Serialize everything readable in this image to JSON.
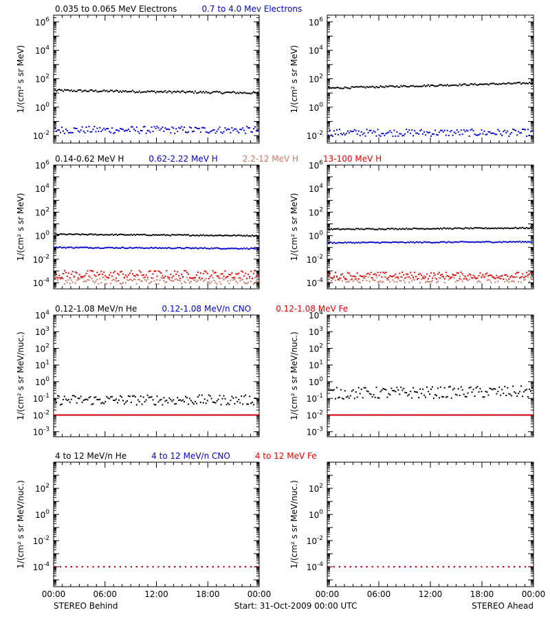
{
  "chart_data": [
    {
      "type": "scatter",
      "panel": "electrons-behind",
      "scale": "log",
      "ylim": [
        0.003,
        3000000
      ],
      "yticks": [
        {
          "value": 0.01,
          "base": "10",
          "exp": "-2"
        },
        {
          "value": 1,
          "base": "10",
          "exp": "0"
        },
        {
          "value": 100,
          "base": "10",
          "exp": "2"
        },
        {
          "value": 10000,
          "base": "10",
          "exp": "4"
        },
        {
          "value": 1000000,
          "base": "10",
          "exp": "6"
        }
      ],
      "ylabel": "1/(cm² s sr MeV)",
      "series": [
        {
          "name": "0.035 to 0.065 MeV Electrons",
          "color": "#000000",
          "y_start": 15,
          "y_end": 10,
          "jitter": 0.08
        },
        {
          "name": "0.7 to 4.0 Mev Electrons",
          "color": "#0000cc",
          "y_start": 0.025,
          "y_end": 0.025,
          "jitter": 0.25
        }
      ]
    },
    {
      "type": "scatter",
      "panel": "electrons-ahead",
      "scale": "log",
      "ylim": [
        0.003,
        3000000
      ],
      "yticks": [
        {
          "value": 0.01,
          "base": "10",
          "exp": "-2"
        },
        {
          "value": 1,
          "base": "10",
          "exp": "0"
        },
        {
          "value": 100,
          "base": "10",
          "exp": "2"
        },
        {
          "value": 10000,
          "base": "10",
          "exp": "4"
        },
        {
          "value": 1000000,
          "base": "10",
          "exp": "6"
        }
      ],
      "ylabel": "1/(cm² s sr MeV)",
      "series": [
        {
          "name": "0.035 to 0.065 MeV Electrons",
          "color": "#000000",
          "y_start": 22,
          "y_end": 50,
          "jitter": 0.06
        },
        {
          "name": "0.7 to 4.0 Mev Electrons",
          "color": "#0000cc",
          "y_start": 0.016,
          "y_end": 0.016,
          "jitter": 0.25
        }
      ]
    },
    {
      "type": "scatter",
      "panel": "protons-behind",
      "scale": "log",
      "ylim": [
        3e-05,
        1000000
      ],
      "yticks": [
        {
          "value": 0.0001,
          "base": "10",
          "exp": "-4"
        },
        {
          "value": 0.01,
          "base": "10",
          "exp": "-2"
        },
        {
          "value": 1,
          "base": "10",
          "exp": "0"
        },
        {
          "value": 100,
          "base": "10",
          "exp": "2"
        },
        {
          "value": 10000,
          "base": "10",
          "exp": "4"
        },
        {
          "value": 1000000,
          "base": "10",
          "exp": "6"
        }
      ],
      "ylabel": "1/(cm² s sr MeV)",
      "series": [
        {
          "name": "0.14-0.62 MeV H",
          "color": "#000000",
          "y_start": 1.3,
          "y_end": 1.0,
          "jitter": 0.05
        },
        {
          "name": "0.62-2.22 MeV H",
          "color": "#0000cc",
          "y_start": 0.1,
          "y_end": 0.08,
          "jitter": 0.05
        },
        {
          "name": "2.2-12 MeV H",
          "color": "#c87864",
          "y_start": 0.00015,
          "y_end": 0.00015,
          "jitter": 0.3
        },
        {
          "name": "13-100 MeV H",
          "color": "#dd0000",
          "y_start": 0.0005,
          "y_end": 0.0005,
          "jitter": 0.35
        }
      ]
    },
    {
      "type": "scatter",
      "panel": "protons-ahead",
      "scale": "log",
      "ylim": [
        3e-05,
        1000000
      ],
      "yticks": [
        {
          "value": 0.0001,
          "base": "10",
          "exp": "-4"
        },
        {
          "value": 0.01,
          "base": "10",
          "exp": "-2"
        },
        {
          "value": 1,
          "base": "10",
          "exp": "0"
        },
        {
          "value": 100,
          "base": "10",
          "exp": "2"
        },
        {
          "value": 10000,
          "base": "10",
          "exp": "4"
        },
        {
          "value": 1000000,
          "base": "10",
          "exp": "6"
        }
      ],
      "ylabel": "1/(cm² s sr MeV)",
      "series": [
        {
          "name": "0.14-0.62 MeV H",
          "color": "#000000",
          "y_start": 3.5,
          "y_end": 4.5,
          "jitter": 0.05
        },
        {
          "name": "0.62-2.22 MeV H",
          "color": "#0000cc",
          "y_start": 0.25,
          "y_end": 0.3,
          "jitter": 0.05
        },
        {
          "name": "2.2-12 MeV H",
          "color": "#c87864",
          "y_start": 0.0002,
          "y_end": 0.0002,
          "jitter": 0.3
        },
        {
          "name": "13-100 MeV H",
          "color": "#dd0000",
          "y_start": 0.0004,
          "y_end": 0.0004,
          "jitter": 0.3
        }
      ]
    },
    {
      "type": "scatter",
      "panel": "heavy-ions-low-behind",
      "scale": "log",
      "ylim": [
        0.0005,
        10000
      ],
      "yticks": [
        {
          "value": 0.001,
          "base": "10",
          "exp": "-3"
        },
        {
          "value": 0.01,
          "base": "10",
          "exp": "-2"
        },
        {
          "value": 0.1,
          "base": "10",
          "exp": "-1"
        },
        {
          "value": 1,
          "base": "10",
          "exp": "0"
        },
        {
          "value": 10,
          "base": "10",
          "exp": "1"
        },
        {
          "value": 100,
          "base": "10",
          "exp": "2"
        },
        {
          "value": 1000,
          "base": "10",
          "exp": "3"
        },
        {
          "value": 10000,
          "base": "10",
          "exp": "4"
        }
      ],
      "ylabel": "1/(cm² s sr MeV/nuc.)",
      "series": [
        {
          "name": "0.12-1.08 MeV/n He",
          "color": "#000000",
          "y_start": 0.08,
          "y_end": 0.08,
          "jitter": 0.3
        },
        {
          "name": "0.12-1.08 MeV/n CNO",
          "color": "#0000cc",
          "y_start": 0.01,
          "y_end": 0.01,
          "jitter": 0.0
        },
        {
          "name": "0.12-1.08 MeV Fe",
          "color": "#dd0000",
          "y_start": 0.01,
          "y_end": 0.01,
          "jitter": 0.0
        }
      ]
    },
    {
      "type": "scatter",
      "panel": "heavy-ions-low-ahead",
      "scale": "log",
      "ylim": [
        0.0005,
        10000
      ],
      "yticks": [
        {
          "value": 0.001,
          "base": "10",
          "exp": "-3"
        },
        {
          "value": 0.01,
          "base": "10",
          "exp": "-2"
        },
        {
          "value": 0.1,
          "base": "10",
          "exp": "-1"
        },
        {
          "value": 1,
          "base": "10",
          "exp": "0"
        },
        {
          "value": 10,
          "base": "10",
          "exp": "1"
        },
        {
          "value": 100,
          "base": "10",
          "exp": "2"
        },
        {
          "value": 1000,
          "base": "10",
          "exp": "3"
        },
        {
          "value": 10000,
          "base": "10",
          "exp": "4"
        }
      ],
      "ylabel": "1/(cm² s sr MeV/nuc.)",
      "series": [
        {
          "name": "0.12-1.08 MeV/n He",
          "color": "#000000",
          "y_start": 0.2,
          "y_end": 0.25,
          "jitter": 0.35
        },
        {
          "name": "0.12-1.08 MeV/n CNO",
          "color": "#0000cc",
          "y_start": 0.01,
          "y_end": 0.01,
          "jitter": 0.0
        },
        {
          "name": "0.12-1.08 MeV Fe",
          "color": "#dd0000",
          "y_start": 0.01,
          "y_end": 0.01,
          "jitter": 0.0
        }
      ]
    },
    {
      "type": "scatter",
      "panel": "heavy-ions-high-behind",
      "scale": "log",
      "ylim": [
        3e-06,
        10000
      ],
      "yticks": [
        {
          "value": 0.0001,
          "base": "10",
          "exp": "-4"
        },
        {
          "value": 0.01,
          "base": "10",
          "exp": "-2"
        },
        {
          "value": 1,
          "base": "10",
          "exp": "0"
        },
        {
          "value": 100,
          "base": "10",
          "exp": "2"
        }
      ],
      "ylabel": "1/(cm² s sr MeV/nuc.)",
      "series": [
        {
          "name": "4 to 12 MeV/n He",
          "color": "#000000",
          "y_start": 0.0001,
          "y_end": 0.0001,
          "jitter": 0.0
        },
        {
          "name": "4 to 12 MeV/n CNO",
          "color": "#0000cc",
          "y_start": 0.0001,
          "y_end": 0.0001,
          "jitter": 0.0
        },
        {
          "name": "4 to 12 MeV Fe",
          "color": "#dd0000",
          "y_start": 0.0001,
          "y_end": 0.0001,
          "jitter": 0.0
        }
      ]
    },
    {
      "type": "scatter",
      "panel": "heavy-ions-high-ahead",
      "scale": "log",
      "ylim": [
        3e-06,
        10000
      ],
      "yticks": [
        {
          "value": 0.0001,
          "base": "10",
          "exp": "-4"
        },
        {
          "value": 0.01,
          "base": "10",
          "exp": "-2"
        },
        {
          "value": 1,
          "base": "10",
          "exp": "0"
        },
        {
          "value": 100,
          "base": "10",
          "exp": "2"
        }
      ],
      "ylabel": "1/(cm² s sr MeV/nuc.)",
      "series": [
        {
          "name": "4 to 12 MeV/n He",
          "color": "#000000",
          "y_start": 0.0001,
          "y_end": 0.0001,
          "jitter": 0.0
        },
        {
          "name": "4 to 12 MeV/n CNO",
          "color": "#0000cc",
          "y_start": 0.0001,
          "y_end": 0.0001,
          "jitter": 0.0
        },
        {
          "name": "4 to 12 MeV Fe",
          "color": "#dd0000",
          "y_start": 0.0001,
          "y_end": 0.0001,
          "jitter": 0.0
        }
      ]
    }
  ],
  "x_axis": {
    "range_hours": [
      0,
      24
    ],
    "tick_labels": [
      "00:00",
      "06:00",
      "12:00",
      "18:00",
      "00:00"
    ]
  },
  "footer": {
    "left": "STEREO Behind",
    "center": "Start: 31-Oct-2009 00:00 UTC",
    "right": "STEREO Ahead"
  }
}
